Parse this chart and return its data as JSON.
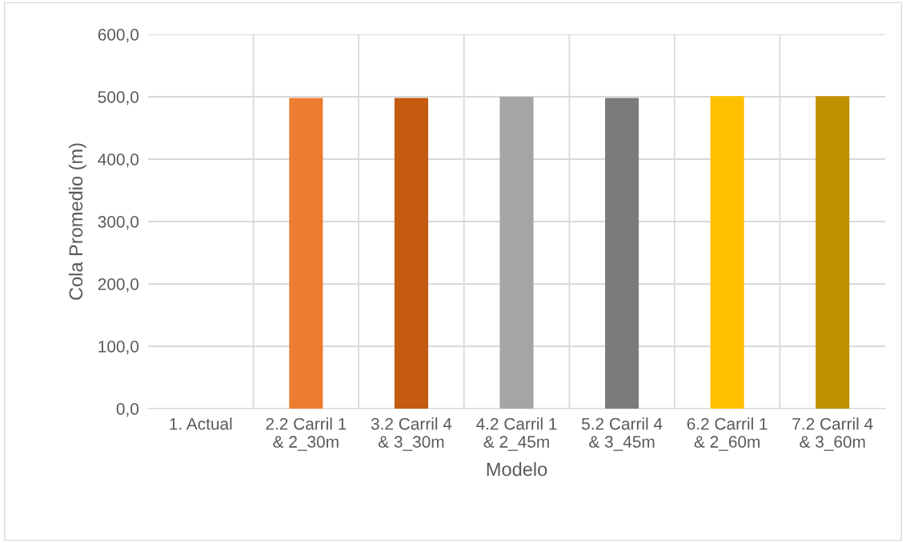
{
  "chart_data": {
    "type": "bar",
    "xlabel": "Modelo",
    "ylabel": "Cola Promedio (m)",
    "categories": [
      "1. Actual",
      "2.2 Carril 1\n& 2_30m",
      "3.2 Carril 4\n& 3_30m",
      "4.2 Carril 1\n& 2_45m",
      "5.2 Carril 4\n& 3_45m",
      "6.2 Carril 1\n& 2_60m",
      "7.2 Carril 4\n& 3_60m"
    ],
    "values": [
      0,
      498,
      498,
      500,
      498,
      501,
      501
    ],
    "colors": [
      "#4472c4",
      "#ed7d31",
      "#c55a11",
      "#a5a5a5",
      "#7b7b7b",
      "#ffc000",
      "#bf9000"
    ],
    "ylim": [
      0,
      600
    ],
    "yticks": [
      {
        "value": 0,
        "label": "0,0"
      },
      {
        "value": 100,
        "label": "100,0"
      },
      {
        "value": 200,
        "label": "200,0"
      },
      {
        "value": 300,
        "label": "300,0"
      },
      {
        "value": 400,
        "label": "400,0"
      },
      {
        "value": 500,
        "label": "500,0"
      },
      {
        "value": 600,
        "label": "600,0"
      }
    ],
    "grid": true,
    "legend": false
  }
}
